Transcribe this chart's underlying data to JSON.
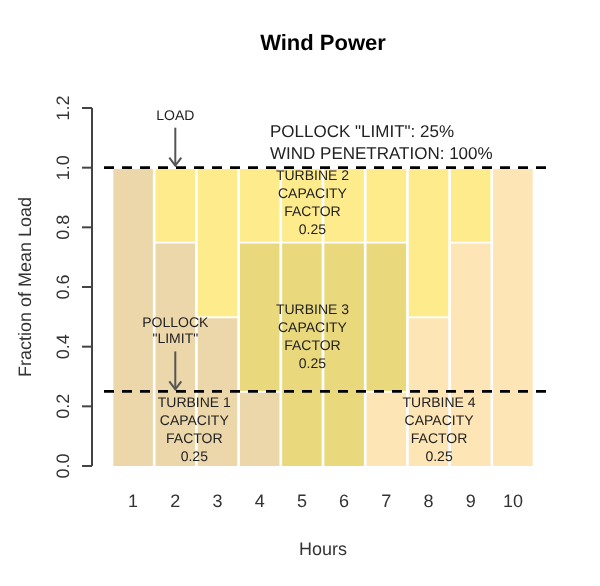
{
  "chart_data": {
    "type": "bar",
    "stacked": true,
    "title": "Wind Power",
    "xlabel": "Hours",
    "ylabel": "Fraction of Mean Load",
    "categories": [
      "1",
      "2",
      "3",
      "4",
      "5",
      "6",
      "7",
      "8",
      "9",
      "10"
    ],
    "series": [
      {
        "color": "#ecd7ab",
        "values": [
          1,
          0.75,
          0.5,
          0.25,
          null,
          null,
          null,
          null,
          null,
          null
        ]
      },
      {
        "color": "#fee5b5",
        "values": [
          null,
          null,
          null,
          null,
          null,
          null,
          0.25,
          0.5,
          0.75,
          1
        ]
      },
      {
        "color": "#e9d97c",
        "values": [
          null,
          null,
          null,
          0.5,
          0.75,
          0.75,
          0.5,
          null,
          null,
          null
        ]
      },
      {
        "color": "#fdeb8c",
        "values": [
          null,
          0.25,
          0.5,
          0.25,
          0.25,
          0.25,
          0.25,
          0.5,
          0.25,
          null
        ]
      }
    ],
    "ylim": [
      0,
      1.2
    ],
    "yticks": [
      {
        "value": 0,
        "label": "0.0"
      },
      {
        "value": 0.2,
        "label": "0.2"
      },
      {
        "value": 0.4,
        "label": "0.4"
      },
      {
        "value": 0.6,
        "label": "0.6"
      },
      {
        "value": 0.8,
        "label": "0.8"
      },
      {
        "value": 1,
        "label": "1.0"
      },
      {
        "value": 1.2,
        "label": "1.2"
      }
    ],
    "ref_lines": [
      {
        "axis": "y",
        "value": 1,
        "label": "LOAD",
        "line_style": "dashed",
        "color": "#000000"
      },
      {
        "axis": "y",
        "value": 0.25,
        "label": "POLLOCK\n\"LIMIT\"",
        "line_style": "dashed",
        "color": "#000000"
      }
    ],
    "annotations": [
      "POLLOCK \"LIMIT\": 25%",
      "WIND PENETRATION: 100%",
      "TURBINE 1\nCAPACITY\nFACTOR\n0.25",
      "TURBINE 2\nCAPACITY\nFACTOR\n0.25",
      "TURBINE 3\nCAPACITY\nFACTOR\n0.25",
      "TURBINE 4\nCAPACITY\nFACTOR\n0.25"
    ],
    "legend": false
  }
}
